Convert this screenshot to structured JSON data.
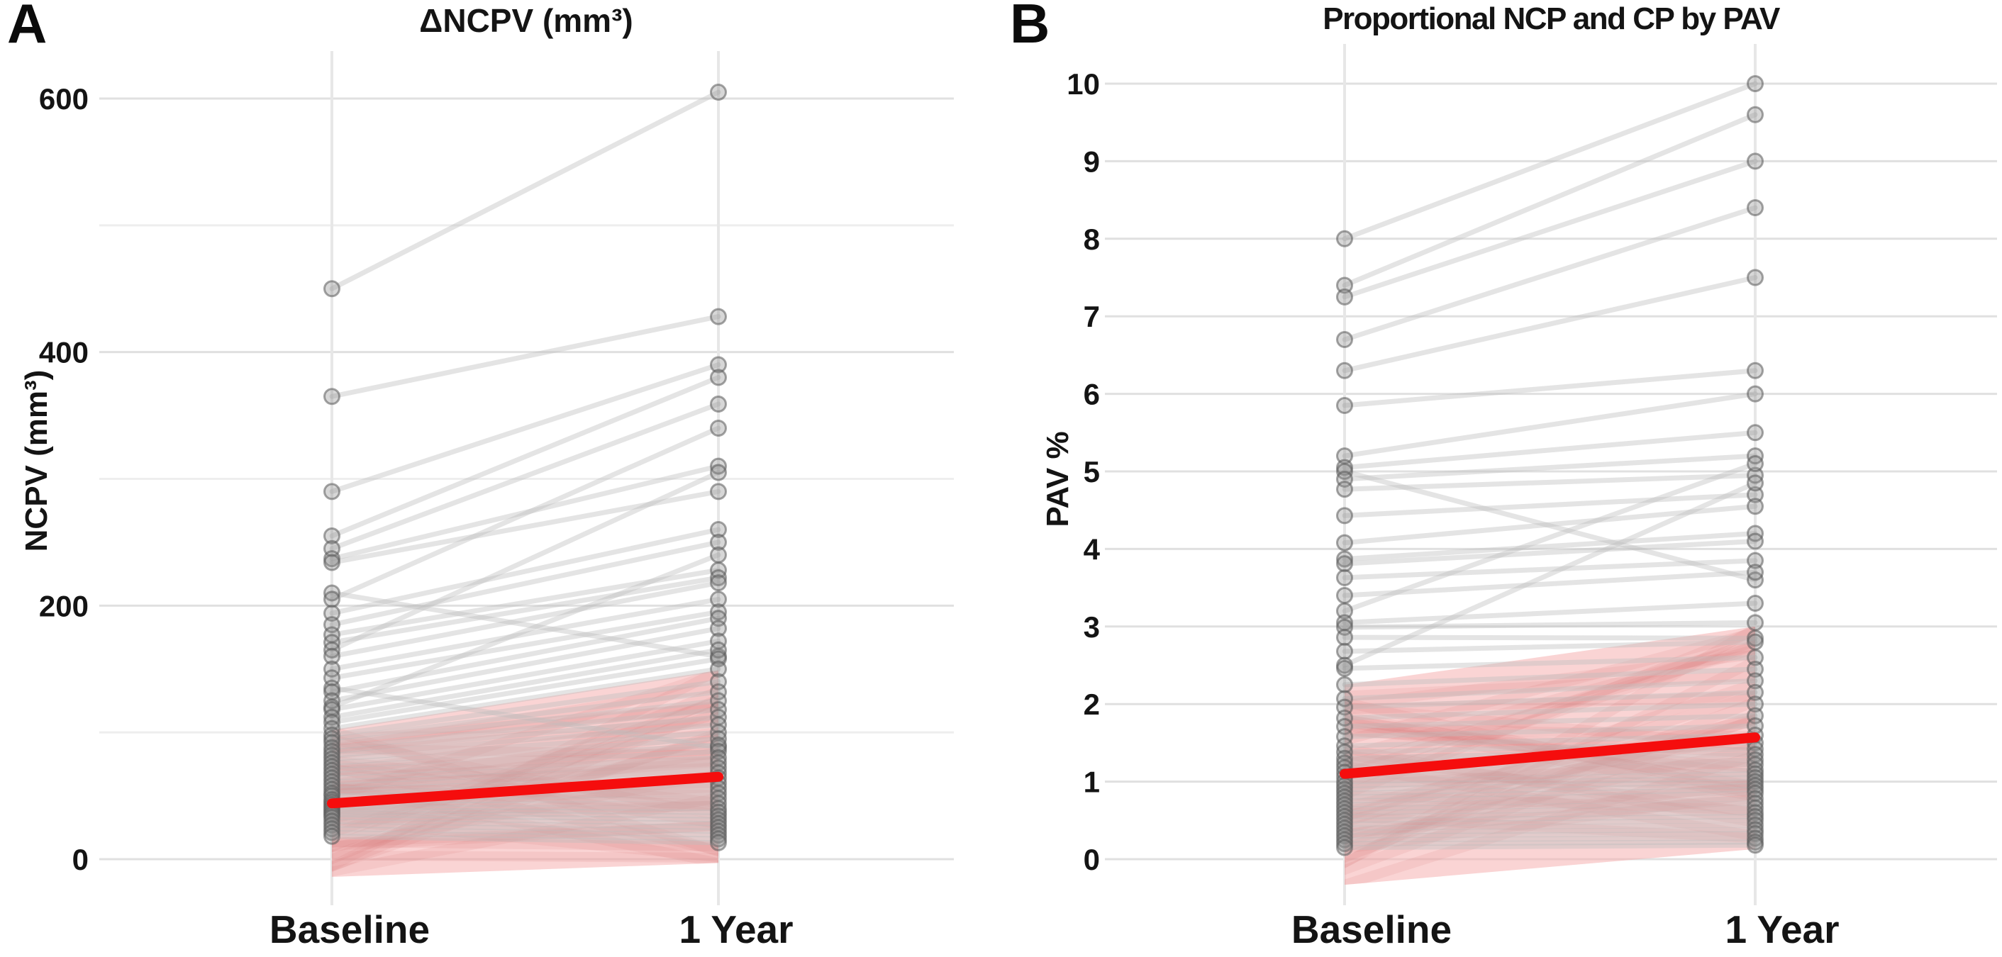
{
  "figure": {
    "background": "#ffffff"
  },
  "colors": {
    "mean_line_red": "#f50d0d",
    "band_pink": "#f5b0b0",
    "band_strand_pink": "#d77878",
    "pair_line_gray": "#bebebe",
    "point_fill_gray": "#8c8c8c",
    "point_stroke_gray": "#5a5a5a",
    "grid_major": "#e0e0e0",
    "grid_minor": "#eeeeee",
    "column_line": "#e7e7e7",
    "text_dark": "#141414"
  },
  "chart_data": [
    {
      "panel_label": "A",
      "type": "paired-line",
      "title": "ΔNCPV (mm³)",
      "ylabel": "NCPV (mm³)",
      "x_categories": [
        "Baseline",
        "1 Year"
      ],
      "ylim": [
        0,
        620
      ],
      "yticks_major": [
        0,
        200,
        400,
        600
      ],
      "yticks_minor": [
        100,
        300,
        500
      ],
      "grid": true,
      "legend": "none",
      "mean_trend": {
        "baseline": 44,
        "year1": 65
      },
      "confidence_band": {
        "baseline": [
          -14,
          102
        ],
        "year1": [
          -3,
          149
        ]
      },
      "pairs": [
        [
          450,
          605
        ],
        [
          365,
          428
        ],
        [
          290,
          390
        ],
        [
          255,
          380
        ],
        [
          245,
          359
        ],
        [
          237,
          310
        ],
        [
          234,
          290
        ],
        [
          210,
          160
        ],
        [
          205,
          340
        ],
        [
          194,
          260
        ],
        [
          185,
          250
        ],
        [
          177,
          228
        ],
        [
          171,
          222
        ],
        [
          165,
          305
        ],
        [
          160,
          218
        ],
        [
          150,
          205
        ],
        [
          143,
          195
        ],
        [
          135,
          88
        ],
        [
          132,
          190
        ],
        [
          125,
          182
        ],
        [
          120,
          240
        ],
        [
          118,
          172
        ],
        [
          112,
          165
        ],
        [
          108,
          158
        ],
        [
          103,
          150
        ],
        [
          98,
          140
        ],
        [
          95,
          132
        ],
        [
          92,
          125
        ],
        [
          88,
          118
        ],
        [
          85,
          112
        ],
        [
          82,
          106
        ],
        [
          79,
          100
        ],
        [
          76,
          95
        ],
        [
          73,
          90
        ],
        [
          70,
          85
        ],
        [
          67,
          80
        ],
        [
          64,
          76
        ],
        [
          61,
          72
        ],
        [
          58,
          68
        ],
        [
          55,
          64
        ],
        [
          52,
          60
        ],
        [
          50,
          56
        ],
        [
          47,
          52
        ],
        [
          45,
          48
        ],
        [
          43,
          44
        ],
        [
          41,
          40
        ],
        [
          39,
          37
        ],
        [
          37,
          34
        ],
        [
          35,
          31
        ],
        [
          33,
          28
        ],
        [
          30,
          25
        ],
        [
          27,
          22
        ],
        [
          24,
          19
        ],
        [
          21,
          16
        ],
        [
          18,
          13
        ]
      ]
    },
    {
      "panel_label": "B",
      "type": "paired-line",
      "title": "Proportional NCP and CP by PAV",
      "ylabel": "PAV %",
      "x_categories": [
        "Baseline",
        "1 Year"
      ],
      "ylim": [
        0,
        10
      ],
      "yticks_major": [
        0,
        1,
        2,
        3,
        4,
        5,
        6,
        7,
        8,
        9,
        10
      ],
      "yticks_minor": [],
      "grid": true,
      "legend": "none",
      "mean_trend": {
        "baseline": 1.1,
        "year1": 1.57
      },
      "confidence_band": {
        "baseline": [
          -0.33,
          2.25
        ],
        "year1": [
          0.13,
          3.0
        ]
      },
      "pairs": [
        [
          8.0,
          10.0
        ],
        [
          7.4,
          9.6
        ],
        [
          7.25,
          9.0
        ],
        [
          6.7,
          8.4
        ],
        [
          6.3,
          7.5
        ],
        [
          5.85,
          6.3
        ],
        [
          5.2,
          6.0
        ],
        [
          5.05,
          5.5
        ],
        [
          5.0,
          3.6
        ],
        [
          4.9,
          5.2
        ],
        [
          4.77,
          4.95
        ],
        [
          4.43,
          4.7
        ],
        [
          4.08,
          4.55
        ],
        [
          3.87,
          4.2
        ],
        [
          3.81,
          4.1
        ],
        [
          3.63,
          3.85
        ],
        [
          3.4,
          3.7
        ],
        [
          3.2,
          5.1
        ],
        [
          3.05,
          3.3
        ],
        [
          2.99,
          3.05
        ],
        [
          2.86,
          2.85
        ],
        [
          2.68,
          2.8
        ],
        [
          2.5,
          4.85
        ],
        [
          2.46,
          2.6
        ],
        [
          2.25,
          2.45
        ],
        [
          2.07,
          2.3
        ],
        [
          1.96,
          2.15
        ],
        [
          1.82,
          2.0
        ],
        [
          1.71,
          1.85
        ],
        [
          1.58,
          1.72
        ],
        [
          1.46,
          1.6
        ],
        [
          1.38,
          1.5
        ],
        [
          1.3,
          1.42
        ],
        [
          1.24,
          1.35
        ],
        [
          1.18,
          1.28
        ],
        [
          1.12,
          1.22
        ],
        [
          1.06,
          1.15
        ],
        [
          1.0,
          1.1
        ],
        [
          0.95,
          1.05
        ],
        [
          0.9,
          1.0
        ],
        [
          0.85,
          0.95
        ],
        [
          0.8,
          0.9
        ],
        [
          0.75,
          0.85
        ],
        [
          0.7,
          0.78
        ],
        [
          0.65,
          0.72
        ],
        [
          0.6,
          0.66
        ],
        [
          0.55,
          0.6
        ],
        [
          0.5,
          0.55
        ],
        [
          0.45,
          0.5
        ],
        [
          0.4,
          0.44
        ],
        [
          0.35,
          0.38
        ],
        [
          0.3,
          0.33
        ],
        [
          0.25,
          0.27
        ],
        [
          0.2,
          0.22
        ],
        [
          0.15,
          0.18
        ]
      ]
    }
  ]
}
